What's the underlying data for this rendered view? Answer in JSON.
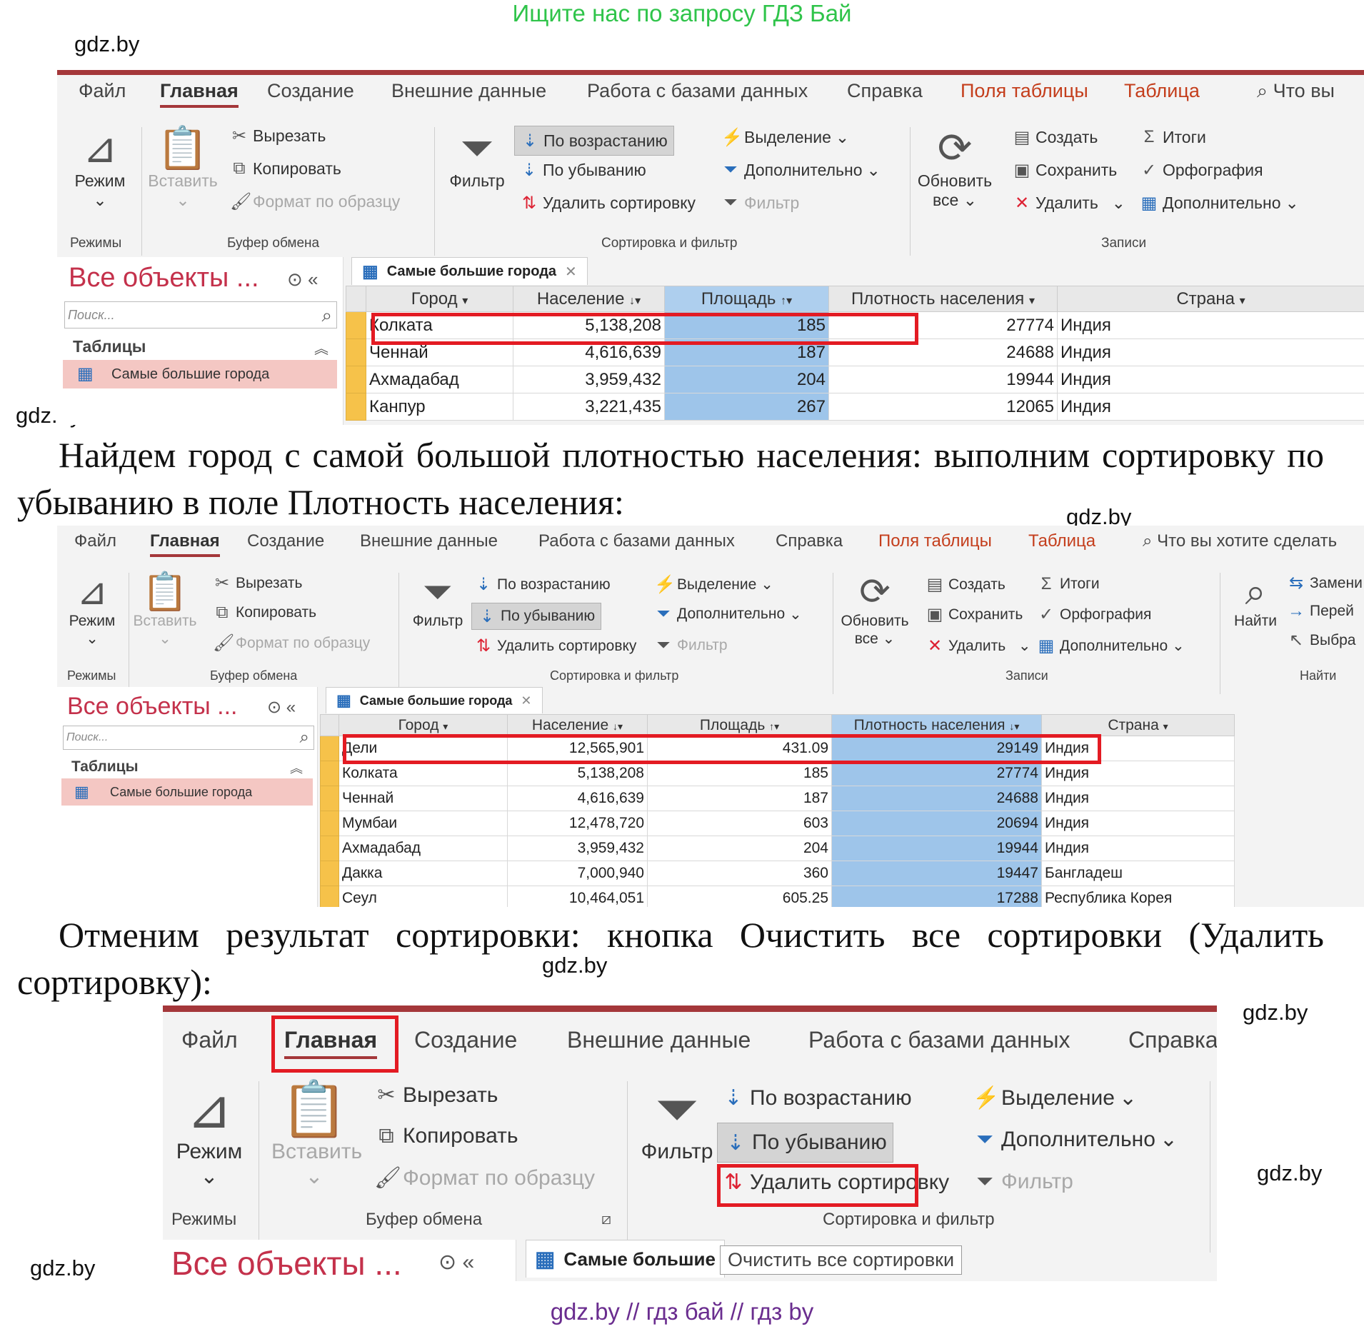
{
  "banner_top": "Ищите нас по запросу ГДЗ Бай",
  "banner_bottom": "gdz.by  //  гдз бай  //  гдз by",
  "watermark": "gdz.by",
  "paragraph1": "Найдем город с самой большой плотностью населения: выполним сортировку по убыванию в поле Плотность населения:",
  "paragraph2": "Отменим результат сортировки: кнопка Очистить все сортировки (Удалить сортировку):",
  "ribbon": {
    "tabs": [
      "Файл",
      "Главная",
      "Создание",
      "Внешние данные",
      "Работа с базами данных",
      "Справка",
      "Поля таблицы",
      "Таблица"
    ],
    "tell_me_short": "Что вы",
    "tell_me_long": "Что вы хотите сделать",
    "mode": "Режим",
    "paste": "Вставить",
    "cut": "Вырезать",
    "copy": "Копировать",
    "format_painter": "Формат по образцу",
    "filter": "Фильтр",
    "sort_asc": "По возрастанию",
    "sort_desc": "По убыванию",
    "remove_sort": "Удалить сортировку",
    "selection": "Выделение",
    "advanced": "Дополнительно",
    "toggle_filter": "Фильтр",
    "refresh_all_1": "Обновить",
    "refresh_all_2": "все",
    "new": "Создать",
    "save": "Сохранить",
    "delete": "Удалить",
    "totals": "Итоги",
    "spelling": "Орфография",
    "more": "Дополнительно",
    "find": "Найти",
    "replace": "Замени",
    "goto": "Перей",
    "select": "Выбра",
    "groups": {
      "views": "Режимы",
      "clipboard": "Буфер обмена",
      "sort_filter": "Сортировка и фильтр",
      "records": "Записи",
      "find": "Найти"
    }
  },
  "nav": {
    "title": "Все объекты ...",
    "search_placeholder": "Поиск...",
    "section": "Таблицы",
    "item": "Самые большие города"
  },
  "doc_tab": "Самые большие города",
  "doc_tab_short": "Самые большие",
  "tooltip": "Очистить все сортировки",
  "columns": [
    "Город",
    "Население",
    "Площадь",
    "Плотность населения",
    "Страна"
  ],
  "table1": [
    [
      "Колката",
      "5,138,208",
      "185",
      "27774",
      "Индия"
    ],
    [
      "Ченнай",
      "4,616,639",
      "187",
      "24688",
      "Индия"
    ],
    [
      "Ахмадабад",
      "3,959,432",
      "204",
      "19944",
      "Индия"
    ],
    [
      "Канпур",
      "3,221,435",
      "267",
      "12065",
      "Индия"
    ]
  ],
  "table2": [
    [
      "Дели",
      "12,565,901",
      "431.09",
      "29149",
      "Индия"
    ],
    [
      "Колката",
      "5,138,208",
      "185",
      "27774",
      "Индия"
    ],
    [
      "Ченнай",
      "4,616,639",
      "187",
      "24688",
      "Индия"
    ],
    [
      "Мумбаи",
      "12,478,720",
      "603",
      "20694",
      "Индия"
    ],
    [
      "Ахмадабад",
      "3,959,432",
      "204",
      "19944",
      "Индия"
    ],
    [
      "Дакка",
      "7,000,940",
      "360",
      "19447",
      "Бангладеш"
    ],
    [
      "Сеул",
      "10,464,051",
      "605.25",
      "17288",
      "Республика Корея"
    ]
  ]
}
